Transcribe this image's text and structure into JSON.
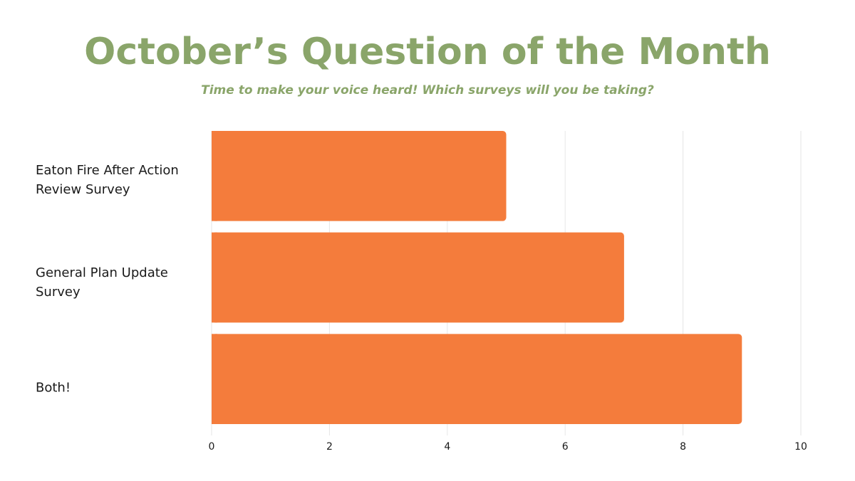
{
  "chart_data": {
    "type": "bar",
    "orientation": "horizontal",
    "title": "October’s Question of the Month",
    "subtitle": "Time to make your voice heard! Which surveys will you be taking?",
    "categories": [
      "Eaton Fire After Action Review Survey",
      "General Plan Update Survey",
      "Both!"
    ],
    "values": [
      5,
      7,
      9
    ],
    "xlim": [
      0,
      10
    ],
    "x_ticks": [
      "0",
      "2",
      "4",
      "6",
      "8",
      "10"
    ],
    "grid": true,
    "bar_color": "#f47c3c",
    "grid_color": "#e6e6e6",
    "title_color": "#8aa56a"
  }
}
